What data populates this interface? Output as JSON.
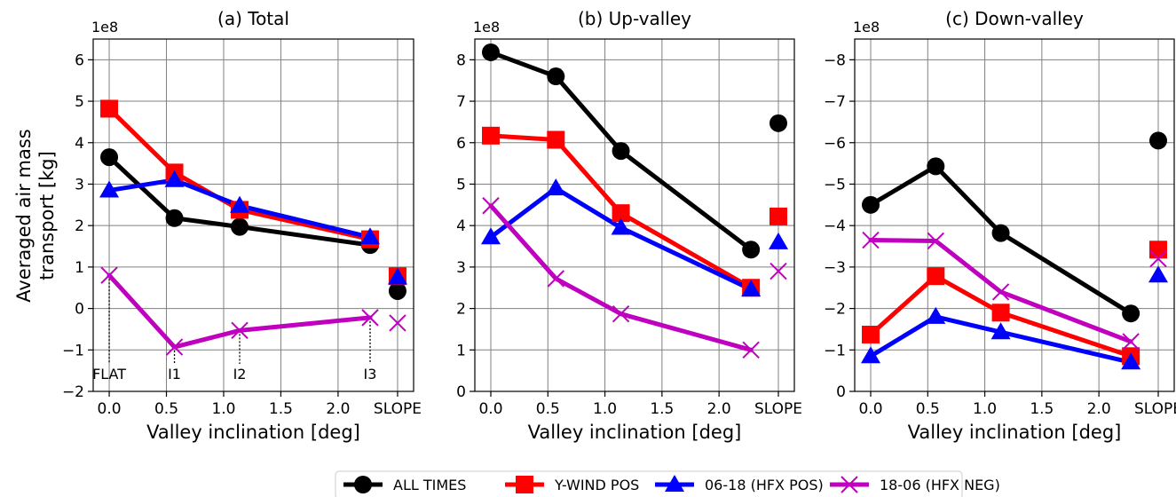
{
  "figure": {
    "ylabel_line1": "Averaged air mass",
    "ylabel_line2": "transport [kg]",
    "colors": {
      "all": "#000000",
      "ywind": "#ff0000",
      "hfxpos": "#0000ff",
      "hfxneg": "#bf00bf",
      "grid": "#808080"
    }
  },
  "legend": {
    "entries": [
      {
        "key": "all",
        "label": "ALL TIMES",
        "marker": "circle"
      },
      {
        "key": "ywind",
        "label": "Y-WIND POS",
        "marker": "square"
      },
      {
        "key": "hfxpos",
        "label": "06-18 (HFX POS)",
        "marker": "triangle"
      },
      {
        "key": "hfxneg",
        "label": "18-06 (HFX NEG)",
        "marker": "x"
      }
    ]
  },
  "chart_data": [
    {
      "type": "line",
      "title": "(a) Total",
      "xlabel": "Valley inclination [deg]",
      "scale_label": "1e8",
      "xlim": [
        -0.14,
        2.66
      ],
      "ylim": [
        -2,
        6.5
      ],
      "inverted_y": false,
      "x": [
        0.0,
        0.57,
        1.14,
        2.28
      ],
      "x_ticks": [
        {
          "v": 0.0,
          "label": "0.0"
        },
        {
          "v": 0.5,
          "label": "0.5"
        },
        {
          "v": 1.0,
          "label": "1.0"
        },
        {
          "v": 1.5,
          "label": "1.5"
        },
        {
          "v": 2.0,
          "label": "2.0"
        },
        {
          "v": 2.52,
          "label": "SLOPE"
        }
      ],
      "y_ticks": [
        {
          "v": -2,
          "label": "−2"
        },
        {
          "v": -1,
          "label": "−1"
        },
        {
          "v": 0,
          "label": "0"
        },
        {
          "v": 1,
          "label": "1"
        },
        {
          "v": 2,
          "label": "2"
        },
        {
          "v": 3,
          "label": "3"
        },
        {
          "v": 4,
          "label": "4"
        },
        {
          "v": 5,
          "label": "5"
        },
        {
          "v": 6,
          "label": "6"
        }
      ],
      "slope_x": 2.52,
      "series": [
        {
          "key": "all",
          "name": "ALL TIMES",
          "values": [
            3.65,
            2.18,
            1.97,
            1.53
          ],
          "slope": 0.42
        },
        {
          "key": "ywind",
          "name": "Y-WIND POS",
          "values": [
            4.82,
            3.28,
            2.38,
            1.67
          ],
          "slope": 0.78
        },
        {
          "key": "hfxpos",
          "name": "06-18 (HFX POS)",
          "values": [
            2.85,
            3.1,
            2.48,
            1.72
          ],
          "slope": 0.75
        },
        {
          "key": "hfxneg",
          "name": "18-06 (HFX NEG)",
          "values": [
            0.8,
            -0.93,
            -0.53,
            -0.22
          ],
          "slope": -0.35
        }
      ],
      "annotations": [
        {
          "x": 0.0,
          "y_from": 0.8,
          "label": "FLAT"
        },
        {
          "x": 0.57,
          "y_from": -0.93,
          "label": "I1"
        },
        {
          "x": 1.14,
          "y_from": -0.53,
          "label": "I2"
        },
        {
          "x": 2.28,
          "y_from": -0.22,
          "label": "I3"
        }
      ],
      "annotation_label_y": -1.55
    },
    {
      "type": "line",
      "title": "(b) Up-valley",
      "xlabel": "Valley inclination [deg]",
      "scale_label": "1e8",
      "xlim": [
        -0.14,
        2.66
      ],
      "ylim": [
        0,
        8.5
      ],
      "inverted_y": false,
      "x": [
        0.0,
        0.57,
        1.14,
        2.28
      ],
      "x_ticks": [
        {
          "v": 0.0,
          "label": "0.0"
        },
        {
          "v": 0.5,
          "label": "0.5"
        },
        {
          "v": 1.0,
          "label": "1.0"
        },
        {
          "v": 1.5,
          "label": "1.5"
        },
        {
          "v": 2.0,
          "label": "2.0"
        },
        {
          "v": 2.52,
          "label": "SLOPE"
        }
      ],
      "y_ticks": [
        {
          "v": 0,
          "label": "0"
        },
        {
          "v": 1,
          "label": "1"
        },
        {
          "v": 2,
          "label": "2"
        },
        {
          "v": 3,
          "label": "3"
        },
        {
          "v": 4,
          "label": "4"
        },
        {
          "v": 5,
          "label": "5"
        },
        {
          "v": 6,
          "label": "6"
        },
        {
          "v": 7,
          "label": "7"
        },
        {
          "v": 8,
          "label": "8"
        }
      ],
      "slope_x": 2.52,
      "series": [
        {
          "key": "all",
          "name": "ALL TIMES",
          "values": [
            8.18,
            7.6,
            5.8,
            3.42
          ],
          "slope": 6.47
        },
        {
          "key": "ywind",
          "name": "Y-WIND POS",
          "values": [
            6.17,
            6.07,
            4.3,
            2.5
          ],
          "slope": 4.22
        },
        {
          "key": "hfxpos",
          "name": "06-18 (HFX POS)",
          "values": [
            3.72,
            4.9,
            3.95,
            2.46
          ],
          "slope": 3.6
        },
        {
          "key": "hfxneg",
          "name": "18-06 (HFX NEG)",
          "values": [
            4.48,
            2.72,
            1.87,
            1.0
          ],
          "slope": 2.9
        }
      ],
      "annotations": []
    },
    {
      "type": "line",
      "title": "(c) Down-valley",
      "xlabel": "Valley inclination [deg]",
      "scale_label": "1e8",
      "xlim": [
        -0.14,
        2.66
      ],
      "ylim": [
        0,
        -8.5
      ],
      "inverted_y": true,
      "x": [
        0.0,
        0.57,
        1.14,
        2.28
      ],
      "x_ticks": [
        {
          "v": 0.0,
          "label": "0.0"
        },
        {
          "v": 0.5,
          "label": "0.5"
        },
        {
          "v": 1.0,
          "label": "1.0"
        },
        {
          "v": 1.5,
          "label": "1.5"
        },
        {
          "v": 2.0,
          "label": "2.0"
        },
        {
          "v": 2.52,
          "label": "SLOPE"
        }
      ],
      "y_ticks": [
        {
          "v": 0,
          "label": "0"
        },
        {
          "v": -1,
          "label": "−1"
        },
        {
          "v": -2,
          "label": "−2"
        },
        {
          "v": -3,
          "label": "−3"
        },
        {
          "v": -4,
          "label": "−4"
        },
        {
          "v": -5,
          "label": "−5"
        },
        {
          "v": -6,
          "label": "−6"
        },
        {
          "v": -7,
          "label": "−7"
        },
        {
          "v": -8,
          "label": "−8"
        }
      ],
      "slope_x": 2.52,
      "series": [
        {
          "key": "all",
          "name": "ALL TIMES",
          "values": [
            -4.5,
            -5.43,
            -3.82,
            -1.88
          ],
          "slope": -6.05
        },
        {
          "key": "ywind",
          "name": "Y-WIND POS",
          "values": [
            -1.37,
            -2.78,
            -1.9,
            -0.85
          ],
          "slope": -3.42
        },
        {
          "key": "hfxpos",
          "name": "06-18 (HFX POS)",
          "values": [
            -0.85,
            -1.8,
            -1.43,
            -0.7
          ],
          "slope": -2.8
        },
        {
          "key": "hfxneg",
          "name": "18-06 (HFX NEG)",
          "values": [
            -3.65,
            -3.63,
            -2.4,
            -1.2
          ],
          "slope": -3.2
        }
      ],
      "annotations": []
    }
  ]
}
